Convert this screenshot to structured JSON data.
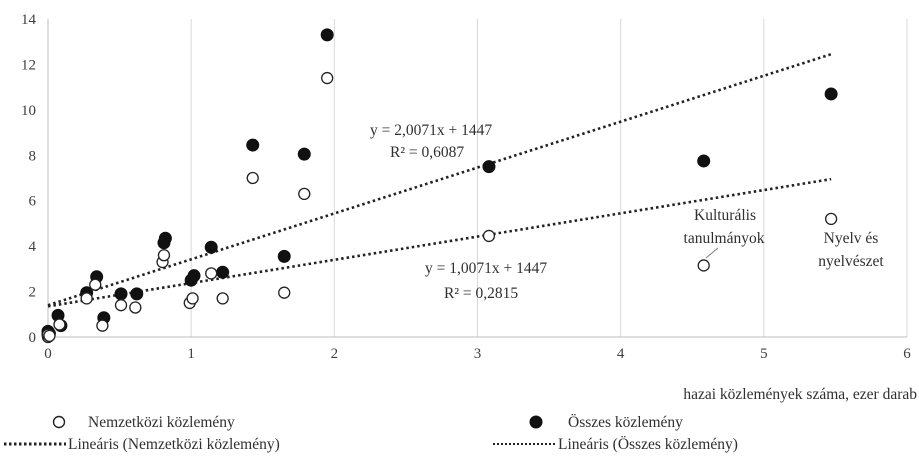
{
  "chart_data": {
    "type": "scatter",
    "xlabel": "hazai közlemények száma, ezer darab",
    "ylabel": "",
    "xlim": [
      0,
      6
    ],
    "ylim": [
      0,
      14
    ],
    "xticks": [
      "0",
      "1",
      "2",
      "3",
      "4",
      "5",
      "6"
    ],
    "yticks": [
      "0",
      "2",
      "4",
      "6",
      "8",
      "10",
      "12",
      "14"
    ],
    "grid": "vertical",
    "legend_position": "bottom",
    "series": [
      {
        "name": "Nemzetközi közlemény",
        "marker": "open-circle",
        "points": [
          [
            0.0,
            0.0
          ],
          [
            0.0,
            0.1
          ],
          [
            0.01,
            0.05
          ],
          [
            0.08,
            0.55
          ],
          [
            0.27,
            1.7
          ],
          [
            0.33,
            2.3
          ],
          [
            0.38,
            0.5
          ],
          [
            0.51,
            1.4
          ],
          [
            0.61,
            1.3
          ],
          [
            0.8,
            3.3
          ],
          [
            0.81,
            3.6
          ],
          [
            0.99,
            1.5
          ],
          [
            1.01,
            1.7
          ],
          [
            1.14,
            2.8
          ],
          [
            1.22,
            1.7
          ],
          [
            1.43,
            7.0
          ],
          [
            1.65,
            1.95
          ],
          [
            1.79,
            6.3
          ],
          [
            1.95,
            11.4
          ],
          [
            3.08,
            4.45
          ],
          [
            4.58,
            3.15
          ],
          [
            5.47,
            5.2
          ]
        ]
      },
      {
        "name": "Összes közlemény",
        "marker": "filled-circle",
        "points": [
          [
            0.0,
            0.1
          ],
          [
            0.0,
            0.25
          ],
          [
            0.01,
            0.15
          ],
          [
            0.07,
            0.95
          ],
          [
            0.09,
            0.5
          ],
          [
            0.27,
            1.95
          ],
          [
            0.34,
            2.65
          ],
          [
            0.39,
            0.85
          ],
          [
            0.51,
            1.9
          ],
          [
            0.62,
            1.9
          ],
          [
            0.81,
            4.15
          ],
          [
            0.82,
            4.35
          ],
          [
            1.0,
            2.5
          ],
          [
            1.02,
            2.7
          ],
          [
            1.14,
            3.95
          ],
          [
            1.22,
            2.85
          ],
          [
            1.43,
            8.45
          ],
          [
            1.65,
            3.55
          ],
          [
            1.79,
            8.05
          ],
          [
            1.95,
            13.3
          ],
          [
            3.08,
            7.5
          ],
          [
            4.58,
            7.75
          ],
          [
            5.47,
            10.7
          ]
        ]
      }
    ],
    "trendlines": [
      {
        "name": "Lineáris (Nemzetközi közlemény)",
        "from": [
          0,
          1.35
        ],
        "to": [
          5.47,
          6.95
        ],
        "equation": "y = 1,0071x + 1447",
        "r2": "R² = 0,2815"
      },
      {
        "name": "Lineáris (Összes közlemény)",
        "from": [
          0,
          1.4
        ],
        "to": [
          5.47,
          12.45
        ],
        "equation": "y = 2,0071x + 1447",
        "r2": "R² = 0,6087"
      }
    ],
    "annotations": [
      {
        "lines": [
          "Kulturális",
          "tanulmányok"
        ],
        "x": 4.58,
        "y": 3.15
      },
      {
        "lines": [
          "Nyelv és",
          "nyelvészet"
        ],
        "x": 5.47,
        "y": 5.2
      }
    ]
  }
}
